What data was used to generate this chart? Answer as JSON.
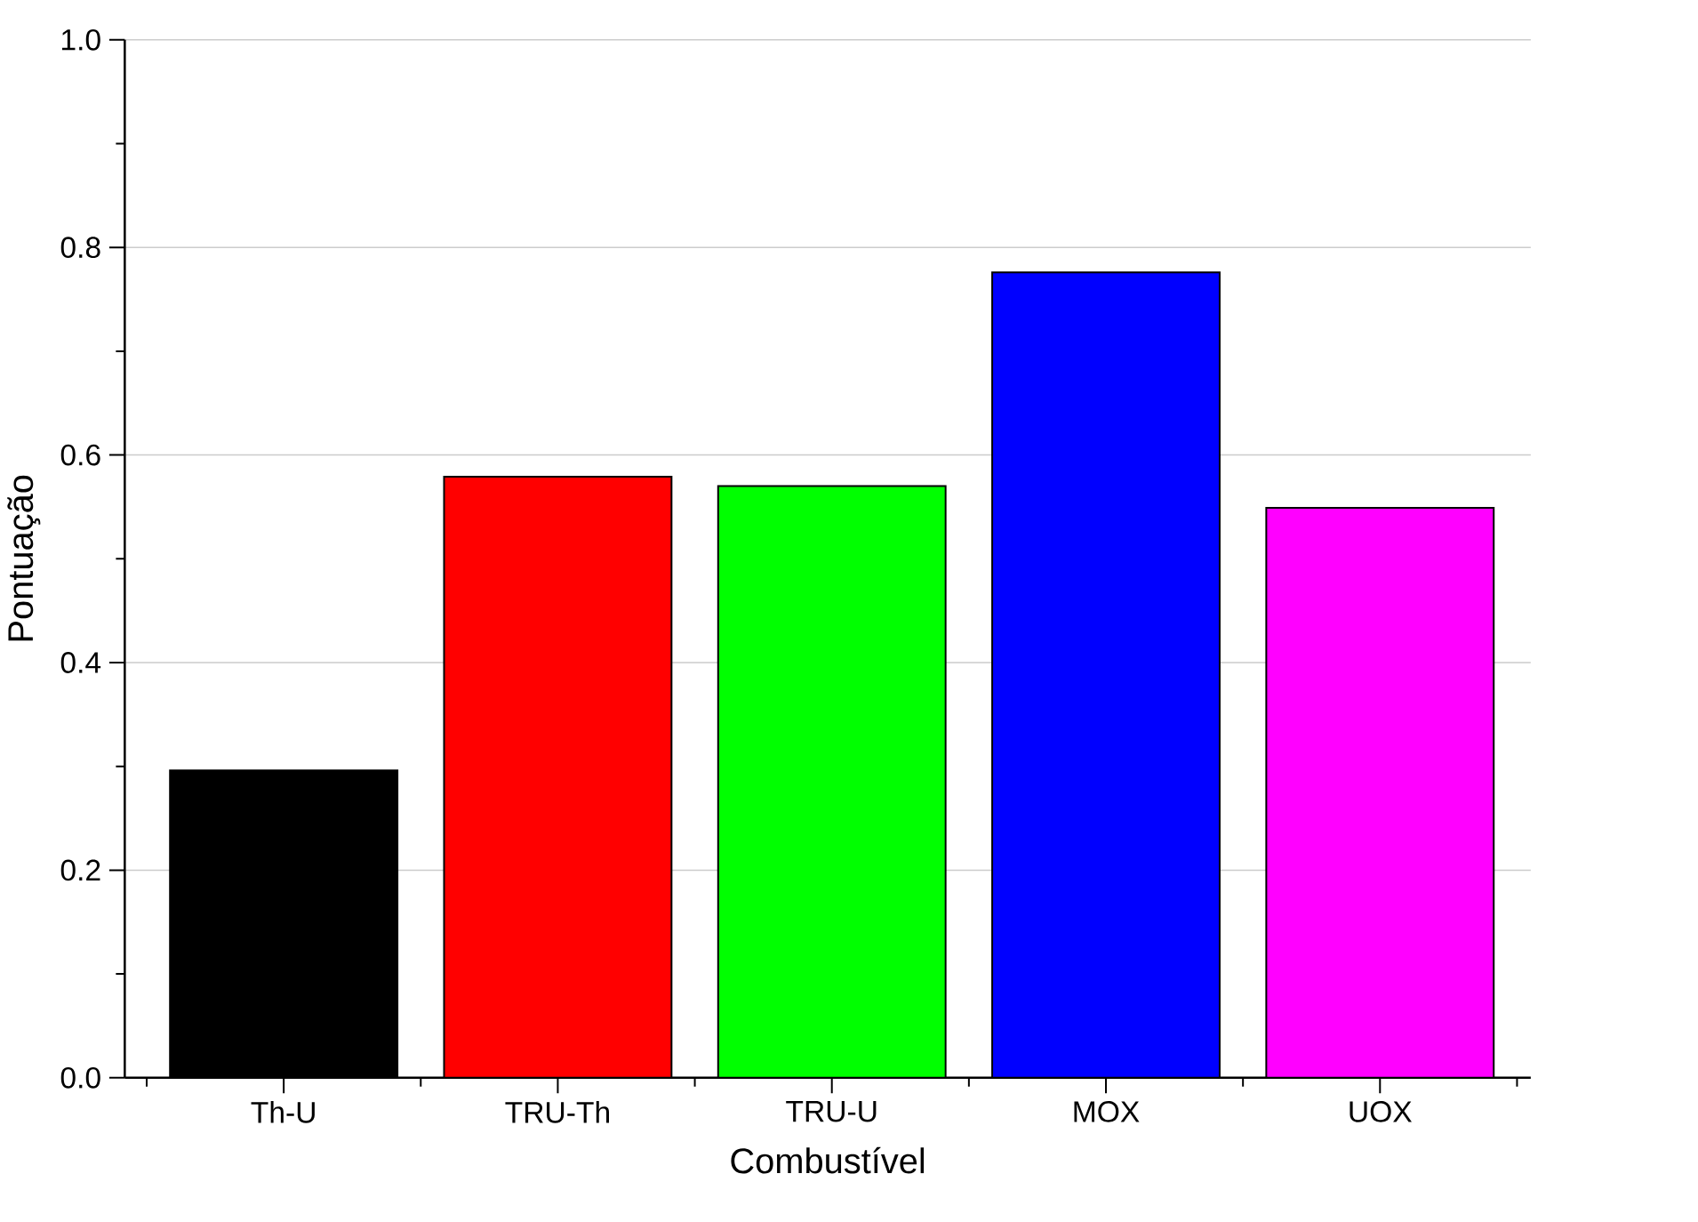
{
  "chart_data": {
    "type": "bar",
    "xlabel": "Combustível",
    "ylabel": "Pontuação",
    "categories": [
      "Th-U",
      "TRU-Th",
      "TRU-U",
      "MOX",
      "UOX"
    ],
    "values": [
      0.296,
      0.579,
      0.57,
      0.776,
      0.549
    ],
    "colors": [
      "#000000",
      "#ff0000",
      "#00ff00",
      "#0000ff",
      "#ff00ff"
    ],
    "ylim": [
      0,
      1.0
    ],
    "yticks": [
      {
        "value": 0,
        "label": "0.0"
      },
      {
        "value": 0.2,
        "label": "0.2"
      },
      {
        "value": 0.4,
        "label": "0.4"
      },
      {
        "value": 0.6,
        "label": "0.6"
      },
      {
        "value": 0.8,
        "label": "0.8"
      },
      {
        "value": 1.0,
        "label": "1.0"
      }
    ],
    "grid": "y"
  }
}
